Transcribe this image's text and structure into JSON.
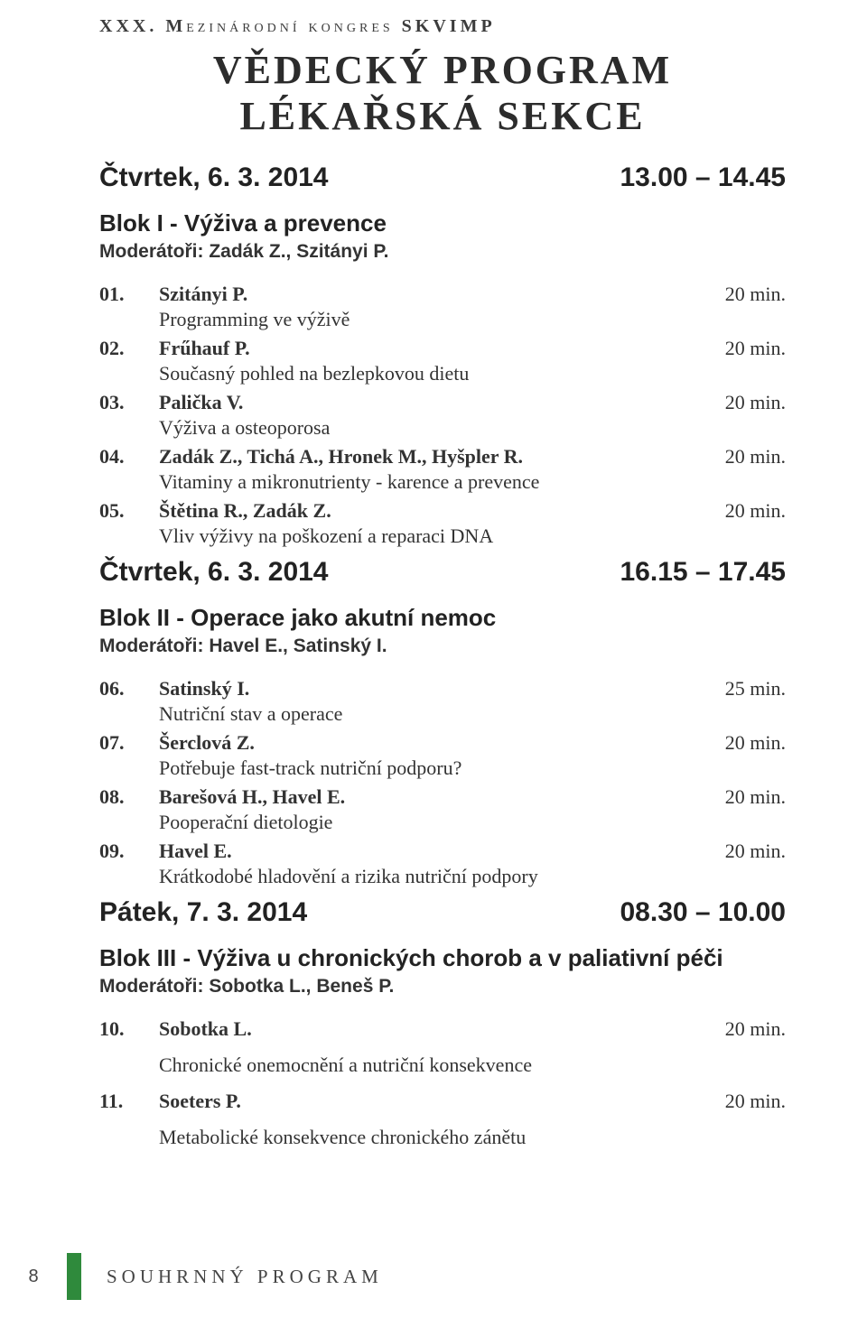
{
  "header": {
    "top_prefix": "XXX. M",
    "top_rest": "ezinárodní kongres",
    "top_suffix": " SKVIMP",
    "title_line1": "VĚDECKÝ PROGRAM",
    "title_line2": "LÉKAŘSKÁ SEKCE"
  },
  "sessions": [
    {
      "day_label": "Čtvrtek, 6. 3. 2014",
      "time_range": "13.00 – 14.45",
      "block_title": "Blok I - Výživa a prevence",
      "moderators": "Moderátoři: Zadák Z., Szitányi P.",
      "talks": [
        {
          "num": "01.",
          "speaker": "Szitányi P.",
          "duration": "20 min.",
          "title": "Programming ve výživě"
        },
        {
          "num": "02.",
          "speaker": "Frűhauf P.",
          "duration": "20 min.",
          "title": "Současný pohled na bezlepkovou dietu"
        },
        {
          "num": "03.",
          "speaker": "Palička V.",
          "duration": "20 min.",
          "title": "Výživa a osteoporosa"
        },
        {
          "num": "04.",
          "speaker": "Zadák Z., Tichá A., Hronek M., Hyšpler R.",
          "duration": "20 min.",
          "title": "Vitaminy a mikronutrienty - karence a prevence"
        },
        {
          "num": "05.",
          "speaker": "Štětina R., Zadák Z.",
          "duration": "20 min.",
          "title": "Vliv výživy na poškození a reparaci DNA"
        }
      ]
    },
    {
      "day_label": "Čtvrtek, 6. 3. 2014",
      "time_range": "16.15 – 17.45",
      "block_title": "Blok II - Operace jako akutní nemoc",
      "moderators": "Moderátoři: Havel E., Satinský I.",
      "talks": [
        {
          "num": "06.",
          "speaker": "Satinský I.",
          "duration": "25 min.",
          "title": "Nutriční stav a operace"
        },
        {
          "num": "07.",
          "speaker": "Šerclová Z.",
          "duration": "20 min.",
          "title": "Potřebuje fast-track nutriční podporu?"
        },
        {
          "num": "08.",
          "speaker": "Barešová H., Havel E.",
          "duration": "20 min.",
          "title": "Pooperační dietologie"
        },
        {
          "num": "09.",
          "speaker": "Havel E.",
          "duration": "20 min.",
          "title": "Krátkodobé hladovění a rizika nutriční podpory"
        }
      ]
    },
    {
      "day_label": "Pátek, 7. 3. 2014",
      "time_range": "08.30 – 10.00",
      "block_title": "Blok III - Výživa u chronických chorob a v paliativní péči",
      "moderators": "Moderátoři: Sobotka L., Beneš P.",
      "talks": [
        {
          "num": "10.",
          "speaker": "Sobotka L.",
          "duration": "20 min.",
          "title": "Chronické onemocnění a nutriční konsekvence"
        },
        {
          "num": "11.",
          "speaker": "Soeters P.",
          "duration": "20 min.",
          "title": "Metabolické konsekvence chronického zánětu"
        }
      ]
    }
  ],
  "footer": {
    "page_number": "8",
    "label": "SOUHRNNÝ PROGRAM",
    "bar_color": "#2f8a3c"
  }
}
